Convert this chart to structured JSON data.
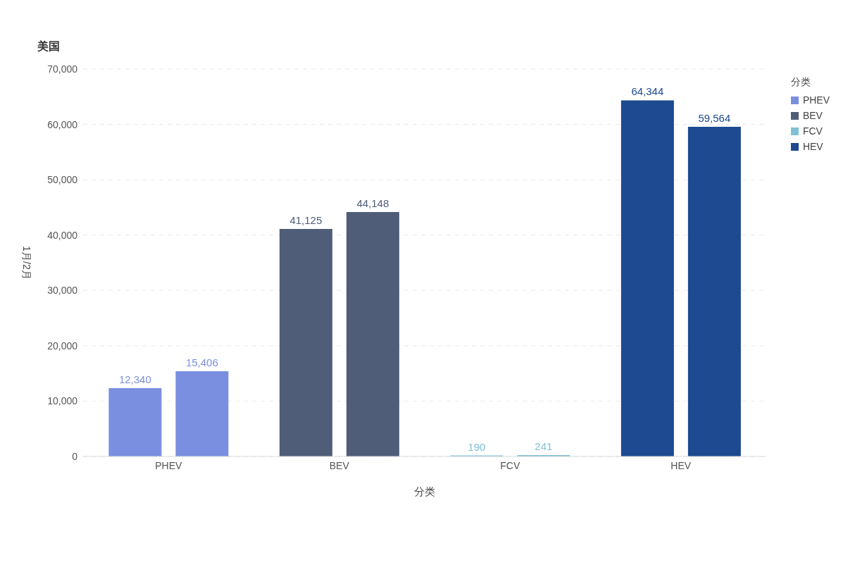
{
  "chart_data": {
    "type": "bar",
    "title": "美国",
    "xlabel": "分类",
    "ylabel": "1月/2月",
    "legend_title": "分类",
    "categories": [
      "PHEV",
      "BEV",
      "FCV",
      "HEV"
    ],
    "series": [
      {
        "name": "PHEV",
        "color": "#7b8fe0",
        "values": [
          12340,
          null,
          null,
          null
        ],
        "value_labels": [
          "12,340",
          null,
          null,
          null
        ]
      },
      {
        "color": "#7b8fe0",
        "values": [
          15406,
          null,
          null,
          null
        ],
        "value_labels": [
          "15,406",
          null,
          null,
          null
        ]
      },
      {
        "name": "BEV",
        "color": "#4f5d78",
        "values": [
          null,
          41125,
          null,
          null
        ],
        "value_labels": [
          null,
          "41,125",
          null,
          null
        ]
      },
      {
        "color": "#4f5d78",
        "values": [
          null,
          44148,
          null,
          null
        ],
        "value_labels": [
          null,
          "44,148",
          null,
          null
        ]
      },
      {
        "name": "FCV",
        "color": "#7fc0d4",
        "values": [
          null,
          null,
          190,
          null
        ],
        "value_labels": [
          null,
          null,
          "190",
          null
        ]
      },
      {
        "color": "#7fc0d4",
        "values": [
          null,
          null,
          241,
          null
        ],
        "value_labels": [
          null,
          null,
          "241",
          null
        ]
      },
      {
        "name": "HEV",
        "color": "#1d4a91",
        "values": [
          null,
          null,
          null,
          64344
        ],
        "value_labels": [
          null,
          null,
          null,
          "64,344"
        ]
      },
      {
        "color": "#1d4a91",
        "values": [
          null,
          null,
          null,
          59564
        ],
        "value_labels": [
          null,
          null,
          null,
          "59,564"
        ]
      }
    ],
    "ylim": [
      0,
      70000
    ],
    "yticks": [
      0,
      {
        "value": 10000,
        "label": "10,000"
      },
      {
        "value": 20000,
        "label": "20,000"
      },
      {
        "value": 30000,
        "label": "30,000"
      },
      {
        "value": 40000,
        "label": "40,000"
      },
      {
        "value": 50000,
        "label": "50,000"
      },
      {
        "value": 60000,
        "label": "60,000"
      },
      {
        "value": 70000,
        "label": "70,000"
      }
    ],
    "grid": "y",
    "legend": "top right"
  }
}
